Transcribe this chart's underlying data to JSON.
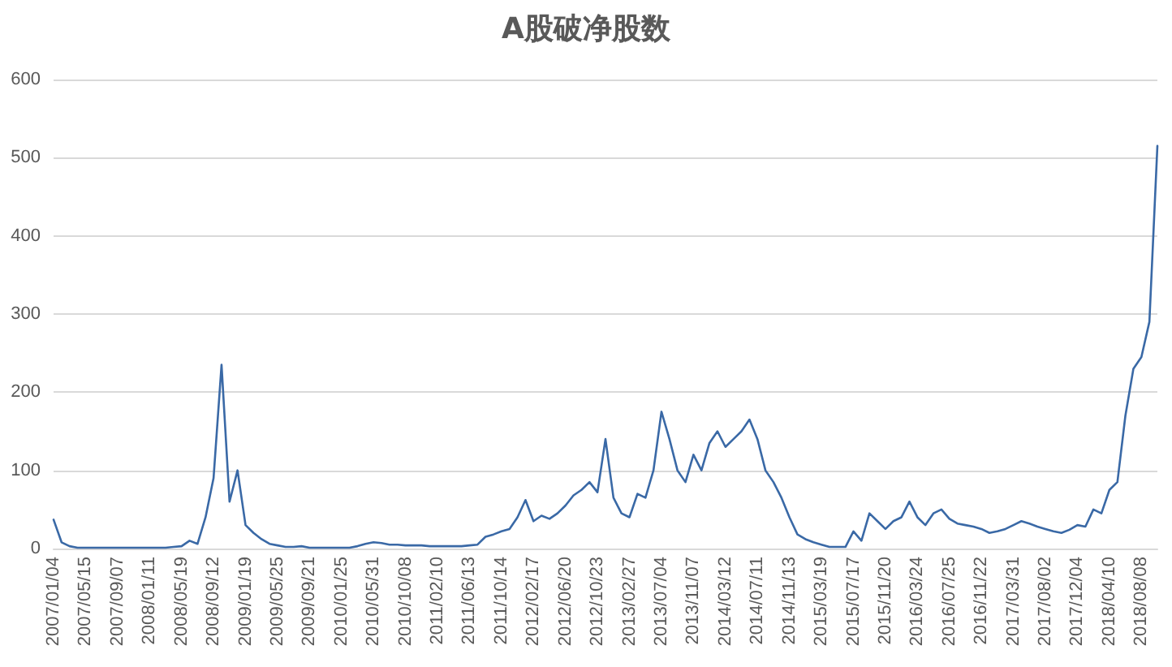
{
  "chart_data": {
    "type": "line",
    "title": "A股破净股数",
    "categories": [
      "2007/01/04",
      null,
      null,
      null,
      "2007/05/15",
      null,
      null,
      null,
      "2007/09/07",
      null,
      null,
      null,
      "2008/01/11",
      null,
      null,
      null,
      "2008/05/19",
      null,
      null,
      null,
      "2008/09/12",
      null,
      null,
      null,
      "2009/01/19",
      null,
      null,
      null,
      "2009/05/25",
      null,
      null,
      null,
      "2009/09/21",
      null,
      null,
      null,
      "2010/01/25",
      null,
      null,
      null,
      "2010/05/31",
      null,
      null,
      null,
      "2010/10/08",
      null,
      null,
      null,
      "2011/02/10",
      null,
      null,
      null,
      "2011/06/13",
      null,
      null,
      null,
      "2011/10/14",
      null,
      null,
      null,
      "2012/02/17",
      null,
      null,
      null,
      "2012/06/20",
      null,
      null,
      null,
      "2012/10/23",
      null,
      null,
      null,
      "2013/02/27",
      null,
      null,
      null,
      "2013/07/04",
      null,
      null,
      null,
      "2013/11/07",
      null,
      null,
      null,
      "2014/03/12",
      null,
      null,
      null,
      "2014/07/11",
      null,
      null,
      null,
      "2014/11/13",
      null,
      null,
      null,
      "2015/03/19",
      null,
      null,
      null,
      "2015/07/17",
      null,
      null,
      null,
      "2015/11/20",
      null,
      null,
      null,
      "2016/03/24",
      null,
      null,
      null,
      "2016/07/25",
      null,
      null,
      null,
      "2016/11/22",
      null,
      null,
      null,
      "2017/03/31",
      null,
      null,
      null,
      "2017/08/02",
      null,
      null,
      null,
      "2017/12/04",
      null,
      null,
      null,
      "2018/04/10",
      null,
      null,
      null,
      "2018/08/08",
      null,
      null
    ],
    "values": [
      37,
      8,
      3,
      1,
      1,
      1,
      1,
      1,
      1,
      1,
      1,
      1,
      1,
      1,
      1,
      2,
      3,
      10,
      6,
      40,
      90,
      235,
      60,
      100,
      30,
      20,
      12,
      6,
      4,
      2,
      2,
      3,
      1,
      1,
      1,
      1,
      1,
      1,
      3,
      6,
      8,
      7,
      5,
      5,
      4,
      4,
      4,
      3,
      3,
      3,
      3,
      3,
      4,
      5,
      15,
      18,
      22,
      25,
      40,
      62,
      35,
      42,
      38,
      45,
      55,
      68,
      75,
      85,
      72,
      140,
      65,
      45,
      40,
      70,
      65,
      100,
      175,
      140,
      100,
      85,
      120,
      100,
      135,
      150,
      130,
      140,
      150,
      165,
      140,
      100,
      85,
      65,
      40,
      18,
      12,
      8,
      5,
      2,
      2,
      2,
      22,
      10,
      45,
      35,
      25,
      35,
      40,
      60,
      40,
      30,
      45,
      50,
      38,
      32,
      30,
      28,
      25,
      20,
      22,
      25,
      30,
      35,
      32,
      28,
      25,
      22,
      20,
      24,
      30,
      28,
      50,
      45,
      75,
      85,
      170,
      230,
      245,
      290,
      515
    ],
    "color": "#3a69a6",
    "ylim": [
      0,
      600
    ],
    "yticks": [
      0,
      100,
      200,
      300,
      400,
      500,
      600
    ],
    "grid": "y",
    "marker": "none",
    "line_style": "solid"
  }
}
